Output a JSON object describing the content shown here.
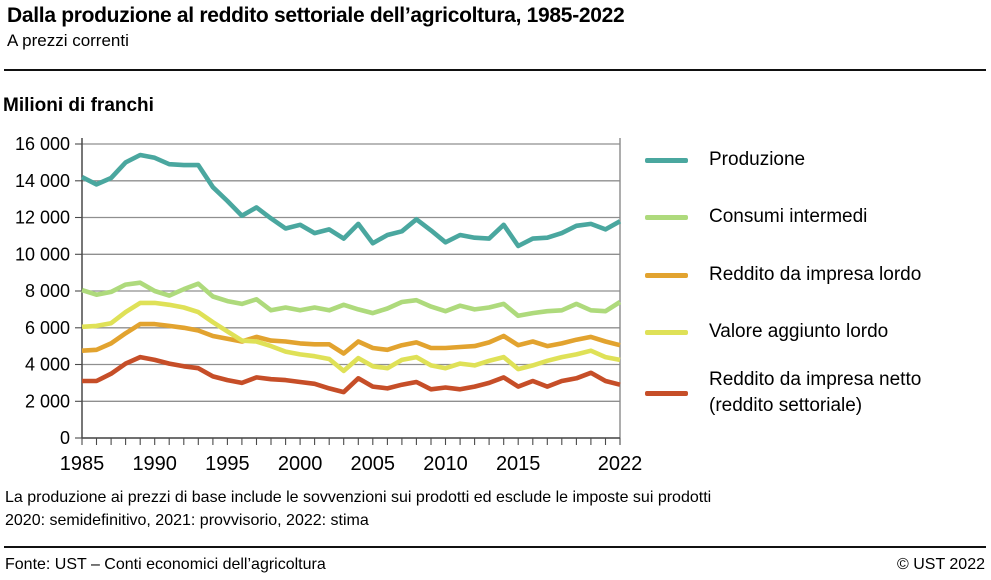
{
  "header": {
    "title": "Dalla produzione al reddito settoriale dell’agricoltura, 1985-2022",
    "subtitle": "A prezzi correnti"
  },
  "chart": {
    "unit_label": "Milioni di franchi"
  },
  "chart_data": {
    "type": "line",
    "title": "Dalla produzione al reddito settoriale dell’agricoltura, 1985-2022",
    "xlabel": "",
    "ylabel": "Milioni di franchi",
    "xlim": [
      1985,
      2022
    ],
    "ylim": [
      0,
      16000
    ],
    "grid": true,
    "legend_position": "right",
    "x": [
      1985,
      1986,
      1987,
      1988,
      1989,
      1990,
      1991,
      1992,
      1993,
      1994,
      1995,
      1996,
      1997,
      1998,
      1999,
      2000,
      2001,
      2002,
      2003,
      2004,
      2005,
      2006,
      2007,
      2008,
      2009,
      2010,
      2011,
      2012,
      2013,
      2014,
      2015,
      2016,
      2017,
      2018,
      2019,
      2020,
      2021,
      2022
    ],
    "x_ticks": [
      {
        "value": 1985,
        "label": "1985"
      },
      {
        "value": 1990,
        "label": "1990"
      },
      {
        "value": 1995,
        "label": "1995"
      },
      {
        "value": 2000,
        "label": "2000"
      },
      {
        "value": 2005,
        "label": "2005"
      },
      {
        "value": 2010,
        "label": "2010"
      },
      {
        "value": 2015,
        "label": "2015"
      },
      {
        "value": 2022,
        "label": "2022"
      }
    ],
    "y_ticks": [
      {
        "value": 0,
        "label": "0"
      },
      {
        "value": 2000,
        "label": "2 000"
      },
      {
        "value": 4000,
        "label": "4 000"
      },
      {
        "value": 6000,
        "label": "6 000"
      },
      {
        "value": 8000,
        "label": "8 000"
      },
      {
        "value": 10000,
        "label": "10 000"
      },
      {
        "value": 12000,
        "label": "12 000"
      },
      {
        "value": 14000,
        "label": "14 000"
      },
      {
        "value": 16000,
        "label": "16 000"
      }
    ],
    "series": [
      {
        "id": "produzione",
        "name": "Produzione",
        "color": "#4aa79f",
        "values": [
          14200,
          13800,
          14150,
          15000,
          15400,
          15250,
          14900,
          14850,
          14850,
          13650,
          12900,
          12100,
          12550,
          11950,
          11400,
          11600,
          11150,
          11350,
          10850,
          11650,
          10600,
          11050,
          11250,
          11900,
          11300,
          10650,
          11050,
          10900,
          10850,
          11600,
          10450,
          10850,
          10900,
          11150,
          11550,
          11650,
          11350,
          11800
        ]
      },
      {
        "id": "consumi-intermedi",
        "name": "Consumi intermedi",
        "color": "#aeda7c",
        "values": [
          8050,
          7800,
          7950,
          8350,
          8450,
          8000,
          7750,
          8100,
          8400,
          7700,
          7450,
          7300,
          7550,
          6950,
          7100,
          6950,
          7100,
          6950,
          7250,
          7000,
          6800,
          7050,
          7400,
          7500,
          7150,
          6900,
          7200,
          7000,
          7100,
          7300,
          6650,
          6800,
          6900,
          6950,
          7300,
          6950,
          6900,
          7400
        ]
      },
      {
        "id": "reddito-impresa-lordo",
        "name": "Reddito da impresa lordo",
        "color": "#e2a32f",
        "values": [
          4750,
          4800,
          5150,
          5700,
          6200,
          6200,
          6100,
          6000,
          5850,
          5550,
          5400,
          5250,
          5500,
          5300,
          5250,
          5150,
          5100,
          5100,
          4600,
          5250,
          4900,
          4800,
          5050,
          5200,
          4900,
          4900,
          4950,
          5000,
          5200,
          5550,
          5050,
          5250,
          5000,
          5150,
          5350,
          5500,
          5250,
          5050
        ]
      },
      {
        "id": "valore-aggiunto-lordo",
        "name": "Valore aggiunto lordo",
        "color": "#dfe157",
        "values": [
          6050,
          6100,
          6250,
          6850,
          7350,
          7350,
          7250,
          7100,
          6850,
          6300,
          5800,
          5300,
          5250,
          5000,
          4700,
          4550,
          4450,
          4300,
          3650,
          4350,
          3900,
          3800,
          4250,
          4400,
          3950,
          3800,
          4050,
          3950,
          4200,
          4400,
          3750,
          3950,
          4200,
          4400,
          4550,
          4750,
          4400,
          4250
        ]
      },
      {
        "id": "reddito-impresa-netto",
        "name": "Reddito da impresa netto (reddito settoriale)",
        "name_lines": [
          "Reddito da impresa netto",
          "(reddito settoriale)"
        ],
        "color": "#c64e28",
        "values": [
          3100,
          3100,
          3500,
          4050,
          4400,
          4250,
          4050,
          3900,
          3800,
          3350,
          3150,
          3000,
          3300,
          3200,
          3150,
          3050,
          2950,
          2700,
          2500,
          3250,
          2800,
          2700,
          2900,
          3050,
          2650,
          2750,
          2650,
          2800,
          3000,
          3300,
          2800,
          3100,
          2800,
          3100,
          3250,
          3550,
          3100,
          2900
        ]
      }
    ]
  },
  "footnotes": {
    "line1": "La produzione ai prezzi di base include le sovvenzioni sui prodotti ed esclude le imposte sui prodotti",
    "line2": "2020: semidefinitivo, 2021: provvisorio, 2022: stima"
  },
  "footer": {
    "source": "Fonte: UST – Conti economici dell’agricoltura",
    "copyright": "© UST 2022"
  }
}
